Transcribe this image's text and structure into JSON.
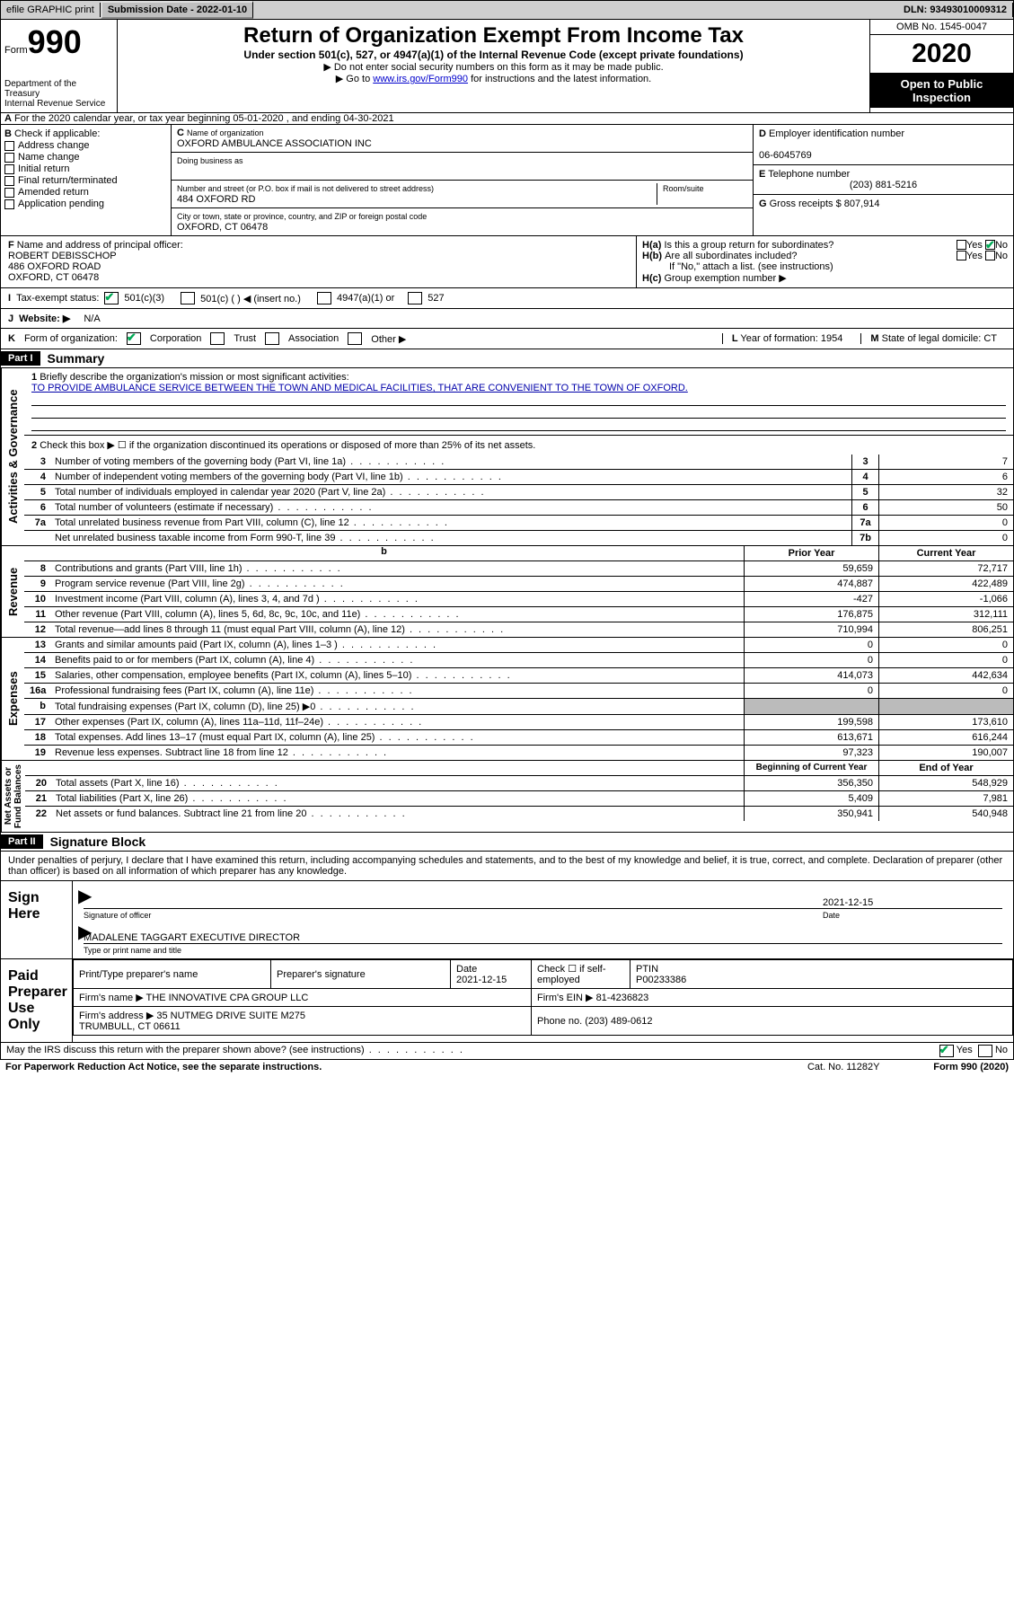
{
  "topbar": {
    "efile": "efile GRAPHIC print",
    "sub_label": "Submission Date - 2022-01-10",
    "dln": "DLN: 93493010009312"
  },
  "header": {
    "form_word": "Form",
    "form_num": "990",
    "dept": "Department of the Treasury\nInternal Revenue Service",
    "title": "Return of Organization Exempt From Income Tax",
    "line1": "Under section 501(c), 527, or 4947(a)(1) of the Internal Revenue Code (except private foundations)",
    "line2": "Do not enter social security numbers on this form as it may be made public.",
    "line3_pre": "Go to ",
    "line3_link": "www.irs.gov/Form990",
    "line3_post": " for instructions and the latest information.",
    "omb": "OMB No. 1545-0047",
    "year": "2020",
    "open": "Open to Public Inspection"
  },
  "rowA": "For the 2020 calendar year, or tax year beginning 05-01-2020      , and ending 04-30-2021",
  "boxB": {
    "title": "Check if applicable:",
    "items": [
      "Address change",
      "Name change",
      "Initial return",
      "Final return/terminated",
      "Amended return",
      "Application pending"
    ]
  },
  "boxC": {
    "name_label": "Name of organization",
    "name": "OXFORD AMBULANCE ASSOCIATION INC",
    "dba_label": "Doing business as",
    "street_label": "Number and street (or P.O. box if mail is not delivered to street address)",
    "room_label": "Room/suite",
    "street": "484 OXFORD RD",
    "city_label": "City or town, state or province, country, and ZIP or foreign postal code",
    "city": "OXFORD, CT  06478"
  },
  "boxD": {
    "label": "Employer identification number",
    "value": "06-6045769"
  },
  "boxE": {
    "label": "Telephone number",
    "value": "(203) 881-5216"
  },
  "boxG": {
    "label": "Gross receipts $",
    "value": "807,914"
  },
  "boxF": {
    "label": "Name and address of principal officer:",
    "lines": [
      "ROBERT DEBISSCHOP",
      "486 OXFORD ROAD",
      "OXFORD, CT  06478"
    ]
  },
  "boxH": {
    "a": "Is this a group return for subordinates?",
    "b": "Are all subordinates included?",
    "b_note": "If \"No,\" attach a list. (see instructions)",
    "c": "Group exemption number ▶",
    "yes": "Yes",
    "no": "No"
  },
  "rowI": {
    "label": "Tax-exempt status:",
    "opts": [
      "501(c)(3)",
      "501(c) (   ) ◀ (insert no.)",
      "4947(a)(1) or",
      "527"
    ]
  },
  "rowJ": {
    "label": "Website: ▶",
    "value": "N/A"
  },
  "rowK": {
    "label": "Form of organization:",
    "opts": [
      "Corporation",
      "Trust",
      "Association",
      "Other ▶"
    ],
    "L": "Year of formation: 1954",
    "M": "State of legal domicile: CT"
  },
  "part1": {
    "hdr": "Part I",
    "title": "Summary",
    "q1_label": "Briefly describe the organization's mission or most significant activities:",
    "q1_text": "TO PROVIDE AMBULANCE SERVICE BETWEEN THE TOWN AND MEDICAL FACILITIES, THAT ARE CONVENIENT TO THE TOWN OF OXFORD.",
    "q2": "Check this box ▶ ☐  if the organization discontinued its operations or disposed of more than 25% of its net assets.",
    "rows_gov": [
      {
        "n": "3",
        "desc": "Number of voting members of the governing body (Part VI, line 1a)",
        "lab": "3",
        "val": "7"
      },
      {
        "n": "4",
        "desc": "Number of independent voting members of the governing body (Part VI, line 1b)",
        "lab": "4",
        "val": "6"
      },
      {
        "n": "5",
        "desc": "Total number of individuals employed in calendar year 2020 (Part V, line 2a)",
        "lab": "5",
        "val": "32"
      },
      {
        "n": "6",
        "desc": "Total number of volunteers (estimate if necessary)",
        "lab": "6",
        "val": "50"
      },
      {
        "n": "7a",
        "desc": "Total unrelated business revenue from Part VIII, column (C), line 12",
        "lab": "7a",
        "val": "0"
      },
      {
        "n": "",
        "desc": "Net unrelated business taxable income from Form 990-T, line 39",
        "lab": "7b",
        "val": "0"
      }
    ],
    "hdr_prior": "Prior Year",
    "hdr_curr": "Current Year",
    "rows_rev": [
      {
        "n": "8",
        "desc": "Contributions and grants (Part VIII, line 1h)",
        "c1": "59,659",
        "c2": "72,717"
      },
      {
        "n": "9",
        "desc": "Program service revenue (Part VIII, line 2g)",
        "c1": "474,887",
        "c2": "422,489"
      },
      {
        "n": "10",
        "desc": "Investment income (Part VIII, column (A), lines 3, 4, and 7d )",
        "c1": "-427",
        "c2": "-1,066"
      },
      {
        "n": "11",
        "desc": "Other revenue (Part VIII, column (A), lines 5, 6d, 8c, 9c, 10c, and 11e)",
        "c1": "176,875",
        "c2": "312,111"
      },
      {
        "n": "12",
        "desc": "Total revenue—add lines 8 through 11 (must equal Part VIII, column (A), line 12)",
        "c1": "710,994",
        "c2": "806,251"
      }
    ],
    "rows_exp": [
      {
        "n": "13",
        "desc": "Grants and similar amounts paid (Part IX, column (A), lines 1–3 )",
        "c1": "0",
        "c2": "0"
      },
      {
        "n": "14",
        "desc": "Benefits paid to or for members (Part IX, column (A), line 4)",
        "c1": "0",
        "c2": "0"
      },
      {
        "n": "15",
        "desc": "Salaries, other compensation, employee benefits (Part IX, column (A), lines 5–10)",
        "c1": "414,073",
        "c2": "442,634"
      },
      {
        "n": "16a",
        "desc": "Professional fundraising fees (Part IX, column (A), line 11e)",
        "c1": "0",
        "c2": "0"
      },
      {
        "n": "b",
        "desc": "Total fundraising expenses (Part IX, column (D), line 25) ▶0",
        "c1": "shade",
        "c2": "shade"
      },
      {
        "n": "17",
        "desc": "Other expenses (Part IX, column (A), lines 11a–11d, 11f–24e)",
        "c1": "199,598",
        "c2": "173,610"
      },
      {
        "n": "18",
        "desc": "Total expenses. Add lines 13–17 (must equal Part IX, column (A), line 25)",
        "c1": "613,671",
        "c2": "616,244"
      },
      {
        "n": "19",
        "desc": "Revenue less expenses. Subtract line 18 from line 12",
        "c1": "97,323",
        "c2": "190,007"
      }
    ],
    "hdr_beg": "Beginning of Current Year",
    "hdr_end": "End of Year",
    "rows_net": [
      {
        "n": "20",
        "desc": "Total assets (Part X, line 16)",
        "c1": "356,350",
        "c2": "548,929"
      },
      {
        "n": "21",
        "desc": "Total liabilities (Part X, line 26)",
        "c1": "5,409",
        "c2": "7,981"
      },
      {
        "n": "22",
        "desc": "Net assets or fund balances. Subtract line 21 from line 20",
        "c1": "350,941",
        "c2": "540,948"
      }
    ],
    "labels": {
      "gov": "Activities & Governance",
      "rev": "Revenue",
      "exp": "Expenses",
      "net": "Net Assets or\nFund Balances"
    }
  },
  "part2": {
    "hdr": "Part II",
    "title": "Signature Block",
    "para": "Under penalties of perjury, I declare that I have examined this return, including accompanying schedules and statements, and to the best of my knowledge and belief, it is true, correct, and complete. Declaration of preparer (other than officer) is based on all information of which preparer has any knowledge.",
    "sign_here": "Sign Here",
    "sig_officer": "Signature of officer",
    "sig_date": "Date",
    "sig_date_val": "2021-12-15",
    "officer_name": "MADALENE TAGGART EXECUTIVE DIRECTOR",
    "type_name": "Type or print name and title",
    "paid": "Paid Preparer Use Only",
    "p_name_h": "Print/Type preparer's name",
    "p_sig_h": "Preparer's signature",
    "p_date_h": "Date",
    "p_date": "2021-12-15",
    "p_check": "Check ☐ if self-employed",
    "p_ptin_h": "PTIN",
    "p_ptin": "P00233386",
    "firm_name_l": "Firm's name   ▶",
    "firm_name": "THE INNOVATIVE CPA GROUP LLC",
    "firm_ein_l": "Firm's EIN ▶",
    "firm_ein": "81-4236823",
    "firm_addr_l": "Firm's address ▶",
    "firm_addr": "35 NUTMEG DRIVE SUITE M275\nTRUMBULL, CT  06611",
    "firm_phone_l": "Phone no.",
    "firm_phone": "(203) 489-0612",
    "discuss": "May the IRS discuss this return with the preparer shown above? (see instructions)",
    "yes": "Yes",
    "no": "No"
  },
  "footer": {
    "pra": "For Paperwork Reduction Act Notice, see the separate instructions.",
    "cat": "Cat. No. 11282Y",
    "form": "Form 990 (2020)"
  }
}
